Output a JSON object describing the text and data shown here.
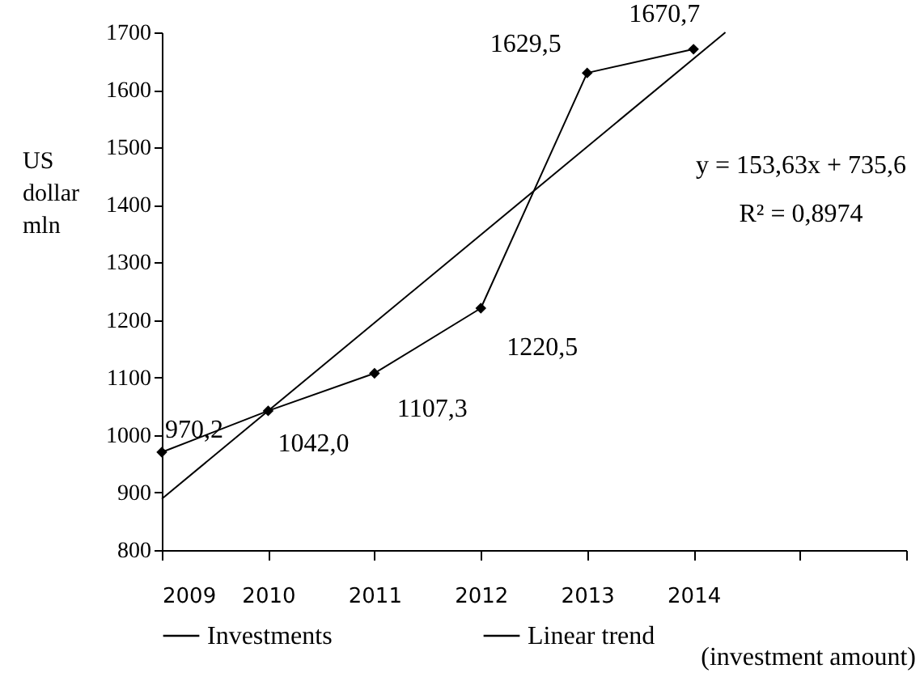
{
  "chart_data": {
    "type": "line",
    "ylabel": "US dollar mln",
    "x": [
      2009,
      2010,
      2011,
      2012,
      2013,
      2014
    ],
    "series": [
      {
        "name": "Investments",
        "color": "#000000",
        "marker": "diamond",
        "values": [
          970.2,
          1042.0,
          1107.3,
          1220.5,
          1629.5,
          1670.7
        ],
        "value_labels": [
          "970,2",
          "1042,0",
          "1107,3",
          "1220,5",
          "1629,5",
          "1670,7"
        ]
      },
      {
        "name": "Linear trend",
        "color": "#000000",
        "marker": "none",
        "x": [
          2009,
          2014.3
        ],
        "values": [
          889,
          1700
        ]
      }
    ],
    "xlim": [
      2009,
      2016
    ],
    "xticks": [
      2009,
      2010,
      2011,
      2012,
      2013,
      2014,
      {
        "value": 2015,
        "label": null
      },
      {
        "value": 2016,
        "label": null
      }
    ],
    "ylim": [
      800,
      1700
    ],
    "yticks": [
      800,
      900,
      1000,
      1100,
      1200,
      1300,
      1400,
      1500,
      1600,
      1700
    ],
    "grid": false,
    "legend": "bottom",
    "line_style": "solid",
    "annotations": [
      "y = 153,63x + 735,6",
      "R² = 0,8974",
      "(investment amount)"
    ]
  }
}
